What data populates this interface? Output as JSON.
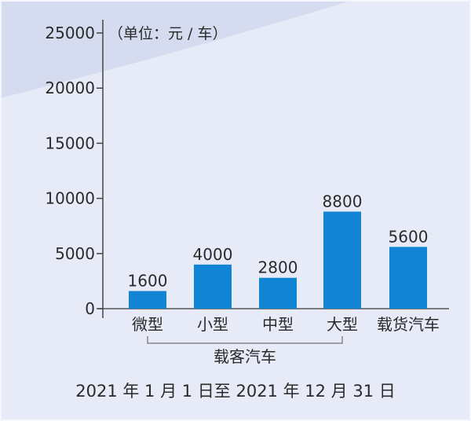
{
  "chart_data": {
    "type": "bar",
    "unit_label": "（单位：元 / 车）",
    "categories": [
      "微型",
      "小型",
      "中型",
      "大型",
      "载货汽车"
    ],
    "values": [
      1600,
      4000,
      2800,
      8800,
      5600
    ],
    "value_labels": [
      "1600",
      "4000",
      "2800",
      "8800",
      "5600"
    ],
    "group_label": "载客汽车",
    "group_members": [
      "微型",
      "小型",
      "中型",
      "大型"
    ],
    "ylim": [
      0,
      25000
    ],
    "yticks": [
      0,
      5000,
      10000,
      15000,
      20000,
      25000
    ],
    "ytick_labels": [
      "0",
      "5000",
      "10000",
      "15000",
      "20000",
      "25000"
    ],
    "xlabel": "2021 年 1 月 1 日至 2021 年 12 月 31 日",
    "ylabel": "",
    "grid": false,
    "bar_color": "#1184d4"
  }
}
